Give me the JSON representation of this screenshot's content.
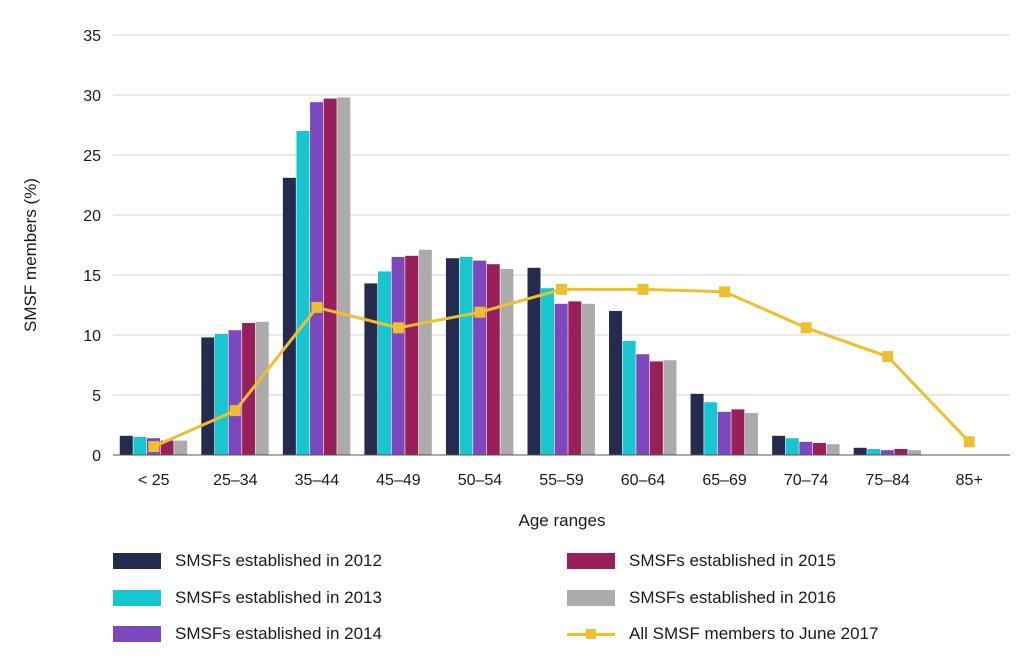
{
  "chart_data": {
    "type": "bar",
    "title": "",
    "xlabel": "Age ranges",
    "ylabel": "SMSF members (%)",
    "ylim": [
      0,
      35
    ],
    "yticks": [
      "0",
      "5",
      "10",
      "15",
      "20",
      "25",
      "30",
      "35"
    ],
    "grid": true,
    "legend_position": "bottom",
    "categories": [
      "< 25",
      "25–34",
      "35–44",
      "45–49",
      "50–54",
      "55–59",
      "60–64",
      "65–69",
      "70–74",
      "75–84",
      "85+"
    ],
    "series": [
      {
        "name": "SMSFs established in 2012",
        "kind": "bar",
        "color": "#262a4f",
        "values": [
          1.6,
          9.8,
          23.1,
          14.3,
          16.4,
          15.6,
          12.0,
          5.1,
          1.6,
          0.6,
          null
        ]
      },
      {
        "name": "SMSFs established in 2013",
        "kind": "bar",
        "color": "#17c7cf",
        "values": [
          1.5,
          10.1,
          27.0,
          15.3,
          16.5,
          13.9,
          9.5,
          4.4,
          1.4,
          0.5,
          null
        ]
      },
      {
        "name": "SMSFs established in 2014",
        "kind": "bar",
        "color": "#7d47bd",
        "values": [
          1.4,
          10.4,
          29.4,
          16.5,
          16.2,
          12.6,
          8.4,
          3.6,
          1.1,
          0.4,
          null
        ]
      },
      {
        "name": "SMSFs established in 2015",
        "kind": "bar",
        "color": "#991f5a",
        "values": [
          1.2,
          11.0,
          29.7,
          16.6,
          15.9,
          12.8,
          7.8,
          3.8,
          1.0,
          0.5,
          null
        ]
      },
      {
        "name": "SMSFs established in 2016",
        "kind": "bar",
        "color": "#ababab",
        "values": [
          1.2,
          11.1,
          29.8,
          17.1,
          15.5,
          12.6,
          7.9,
          3.5,
          0.9,
          0.4,
          null
        ]
      },
      {
        "name": "All SMSF members to June 2017",
        "kind": "line",
        "color": "#eec02e",
        "values": [
          0.7,
          3.7,
          12.3,
          10.6,
          11.9,
          13.8,
          13.8,
          13.6,
          10.6,
          8.2,
          1.1
        ]
      }
    ]
  }
}
